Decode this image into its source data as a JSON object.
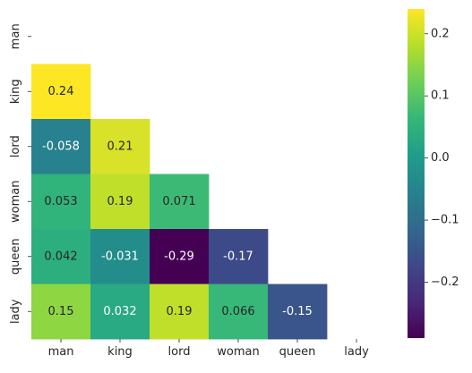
{
  "chart_data": {
    "type": "heatmap",
    "title": "",
    "xlabel": "",
    "ylabel": "",
    "row_labels": [
      "man",
      "king",
      "lord",
      "woman",
      "queen",
      "lady"
    ],
    "col_labels": [
      "man",
      "king",
      "lord",
      "woman",
      "queen",
      "lady"
    ],
    "mask": "upper-triangle-including-diagonal",
    "cells": [
      {
        "row": "king",
        "col": "man",
        "value": 0.24,
        "label": "0.24"
      },
      {
        "row": "lord",
        "col": "man",
        "value": -0.058,
        "label": "-0.058"
      },
      {
        "row": "lord",
        "col": "king",
        "value": 0.21,
        "label": "0.21"
      },
      {
        "row": "woman",
        "col": "man",
        "value": 0.053,
        "label": "0.053"
      },
      {
        "row": "woman",
        "col": "king",
        "value": 0.19,
        "label": "0.19"
      },
      {
        "row": "woman",
        "col": "lord",
        "value": 0.071,
        "label": "0.071"
      },
      {
        "row": "queen",
        "col": "man",
        "value": 0.042,
        "label": "0.042"
      },
      {
        "row": "queen",
        "col": "king",
        "value": -0.031,
        "label": "-0.031"
      },
      {
        "row": "queen",
        "col": "lord",
        "value": -0.29,
        "label": "-0.29"
      },
      {
        "row": "queen",
        "col": "woman",
        "value": -0.17,
        "label": "-0.17"
      },
      {
        "row": "lady",
        "col": "man",
        "value": 0.15,
        "label": "0.15"
      },
      {
        "row": "lady",
        "col": "king",
        "value": 0.032,
        "label": "0.032"
      },
      {
        "row": "lady",
        "col": "lord",
        "value": 0.19,
        "label": "0.19"
      },
      {
        "row": "lady",
        "col": "woman",
        "value": 0.066,
        "label": "0.066"
      },
      {
        "row": "lady",
        "col": "queen",
        "value": -0.15,
        "label": "-0.15"
      }
    ],
    "colormap": "viridis",
    "colorbar": {
      "vmin": -0.29,
      "vmax": 0.24,
      "ticks": [
        0.2,
        0.1,
        0.0,
        -0.1,
        -0.2
      ],
      "tick_labels": [
        "0.2",
        "0.1",
        "0.0",
        "−0.1",
        "−0.2"
      ],
      "placement": "right"
    }
  }
}
